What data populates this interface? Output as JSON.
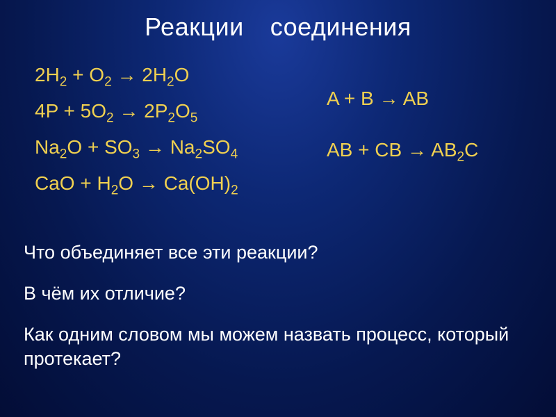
{
  "title_part1": "Реакции",
  "title_part2": "соединения",
  "equations_left": {
    "e1_a": "2H",
    "e1_b": "2",
    "e1_c": " + O",
    "e1_d": "2",
    "e1_e": " →  2H",
    "e1_f": "2",
    "e1_g": "O",
    "e2_a": "4P + 5O",
    "e2_b": "2",
    "e2_c": " →  2P",
    "e2_d": "2",
    "e2_e": "O",
    "e2_f": "5",
    "e3_a": "Na",
    "e3_b": "2",
    "e3_c": "O + SO",
    "e3_d": "3",
    "e3_e": " → Na",
    "e3_f": "2",
    "e3_g": "SO",
    "e3_h": "4",
    "e4_a": "CaO + H",
    "e4_b": "2",
    "e4_c": "O → Ca(OH)",
    "e4_d": "2"
  },
  "equations_right": {
    "r1": "A + B → AB",
    "r2_a": "AB + CB → AB",
    "r2_b": "2",
    "r2_c": "C"
  },
  "questions": {
    "q1": "Что объединяет все эти реакции?",
    "q2": "В чём их отличие?",
    "q3": "Как одним словом мы можем назвать процесс, который протекает?"
  },
  "colors": {
    "title": "#ffffff",
    "equation": "#f0d050",
    "question": "#ffffff",
    "bg_center": "#1a3a9a",
    "bg_edge": "#030d36"
  },
  "fonts": {
    "title_size": 36,
    "eq_size": 28,
    "q_size": 27
  }
}
